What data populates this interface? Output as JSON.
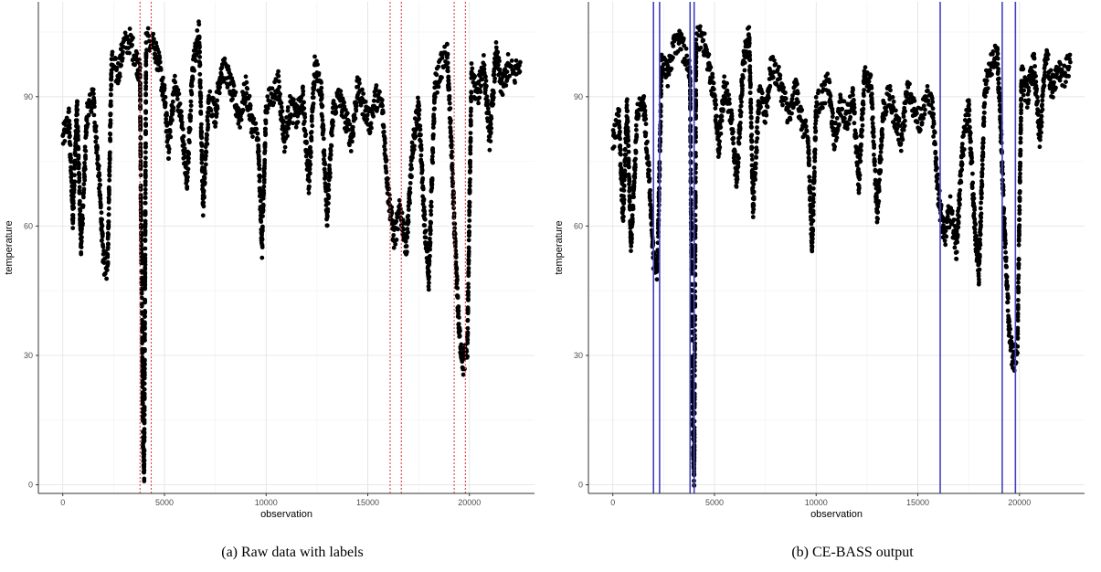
{
  "figure": {
    "captions": [
      "(a) Raw data with labels",
      "(b) CE-BASS output"
    ]
  },
  "chart_data": [
    {
      "type": "scatter",
      "caption": "(a) Raw data with labels",
      "xlabel": "observation",
      "ylabel": "temperature",
      "xlim": [
        -1200,
        23200
      ],
      "ylim": [
        -2,
        112
      ],
      "x_ticks": [
        0,
        5000,
        10000,
        15000,
        20000
      ],
      "y_ticks": [
        0,
        30,
        60,
        90
      ],
      "grid": true,
      "series": [
        {
          "marker_color": "#000000",
          "points": [
            [
              0,
              80
            ],
            [
              300,
              85
            ],
            [
              500,
              62
            ],
            [
              700,
              88
            ],
            [
              900,
              55
            ],
            [
              1200,
              86
            ],
            [
              1500,
              90
            ],
            [
              1800,
              70
            ],
            [
              2000,
              52
            ],
            [
              2200,
              50
            ],
            [
              2400,
              98
            ],
            [
              2700,
              95
            ],
            [
              3000,
              102
            ],
            [
              3300,
              103
            ],
            [
              3600,
              99
            ],
            [
              3800,
              95
            ],
            [
              3850,
              60
            ],
            [
              3900,
              35
            ],
            [
              3950,
              10
            ],
            [
              4000,
              2
            ],
            [
              4100,
              103
            ],
            [
              4400,
              104
            ],
            [
              4700,
              98
            ],
            [
              5000,
              90
            ],
            [
              5200,
              78
            ],
            [
              5500,
              93
            ],
            [
              5800,
              86
            ],
            [
              6100,
              70
            ],
            [
              6400,
              97
            ],
            [
              6700,
              105
            ],
            [
              6900,
              65
            ],
            [
              7200,
              90
            ],
            [
              7500,
              86
            ],
            [
              7800,
              97
            ],
            [
              8100,
              95
            ],
            [
              8400,
              90
            ],
            [
              8700,
              85
            ],
            [
              9000,
              92
            ],
            [
              9300,
              84
            ],
            [
              9600,
              80
            ],
            [
              9800,
              55
            ],
            [
              10000,
              88
            ],
            [
              10300,
              90
            ],
            [
              10600,
              93
            ],
            [
              10900,
              80
            ],
            [
              11200,
              88
            ],
            [
              11500,
              85
            ],
            [
              11800,
              90
            ],
            [
              12100,
              70
            ],
            [
              12400,
              97
            ],
            [
              12700,
              92
            ],
            [
              13000,
              62
            ],
            [
              13300,
              87
            ],
            [
              13600,
              90
            ],
            [
              13900,
              85
            ],
            [
              14200,
              80
            ],
            [
              14500,
              92
            ],
            [
              14800,
              88
            ],
            [
              15100,
              84
            ],
            [
              15400,
              90
            ],
            [
              15700,
              88
            ],
            [
              16000,
              68
            ],
            [
              16300,
              57
            ],
            [
              16600,
              64
            ],
            [
              16900,
              55
            ],
            [
              17200,
              78
            ],
            [
              17500,
              88
            ],
            [
              17800,
              60
            ],
            [
              18000,
              48
            ],
            [
              18300,
              92
            ],
            [
              18600,
              97
            ],
            [
              18900,
              100
            ],
            [
              19100,
              80
            ],
            [
              19300,
              55
            ],
            [
              19500,
              35
            ],
            [
              19700,
              28
            ],
            [
              19900,
              32
            ],
            [
              20100,
              95
            ],
            [
              20400,
              90
            ],
            [
              20700,
              98
            ],
            [
              21000,
              80
            ],
            [
              21300,
              100
            ],
            [
              21600,
              92
            ],
            [
              21900,
              97
            ],
            [
              22200,
              95
            ],
            [
              22500,
              98
            ]
          ]
        }
      ],
      "annotations": {
        "type": "vertical-lines",
        "style": "dotted",
        "color": "#e04040",
        "x": [
          3800,
          4350,
          16100,
          16650,
          19250,
          19800
        ]
      }
    },
    {
      "type": "scatter",
      "caption": "(b) CE-BASS output",
      "xlabel": "observation",
      "ylabel": "temperature",
      "xlim": [
        -1200,
        23200
      ],
      "ylim": [
        -2,
        112
      ],
      "x_ticks": [
        0,
        5000,
        10000,
        15000,
        20000
      ],
      "y_ticks": [
        0,
        30,
        60,
        90
      ],
      "grid": true,
      "series": [
        {
          "marker_color": "#000000",
          "points": [
            [
              0,
              80
            ],
            [
              300,
              85
            ],
            [
              500,
              62
            ],
            [
              700,
              88
            ],
            [
              900,
              55
            ],
            [
              1200,
              86
            ],
            [
              1500,
              90
            ],
            [
              1800,
              70
            ],
            [
              2000,
              52
            ],
            [
              2200,
              50
            ],
            [
              2400,
              98
            ],
            [
              2700,
              95
            ],
            [
              3000,
              102
            ],
            [
              3300,
              103
            ],
            [
              3600,
              99
            ],
            [
              3800,
              95
            ],
            [
              3850,
              60
            ],
            [
              3900,
              35
            ],
            [
              3950,
              10
            ],
            [
              4000,
              2
            ],
            [
              4100,
              103
            ],
            [
              4400,
              104
            ],
            [
              4700,
              98
            ],
            [
              5000,
              90
            ],
            [
              5200,
              78
            ],
            [
              5500,
              93
            ],
            [
              5800,
              86
            ],
            [
              6100,
              70
            ],
            [
              6400,
              97
            ],
            [
              6700,
              105
            ],
            [
              6900,
              65
            ],
            [
              7200,
              90
            ],
            [
              7500,
              86
            ],
            [
              7800,
              97
            ],
            [
              8100,
              95
            ],
            [
              8400,
              90
            ],
            [
              8700,
              85
            ],
            [
              9000,
              92
            ],
            [
              9300,
              84
            ],
            [
              9600,
              80
            ],
            [
              9800,
              55
            ],
            [
              10000,
              88
            ],
            [
              10300,
              90
            ],
            [
              10600,
              93
            ],
            [
              10900,
              80
            ],
            [
              11200,
              88
            ],
            [
              11500,
              85
            ],
            [
              11800,
              90
            ],
            [
              12100,
              70
            ],
            [
              12400,
              97
            ],
            [
              12700,
              92
            ],
            [
              13000,
              62
            ],
            [
              13300,
              87
            ],
            [
              13600,
              90
            ],
            [
              13900,
              85
            ],
            [
              14200,
              80
            ],
            [
              14500,
              92
            ],
            [
              14800,
              88
            ],
            [
              15100,
              84
            ],
            [
              15400,
              90
            ],
            [
              15700,
              88
            ],
            [
              16000,
              68
            ],
            [
              16300,
              57
            ],
            [
              16600,
              64
            ],
            [
              16900,
              55
            ],
            [
              17200,
              78
            ],
            [
              17500,
              88
            ],
            [
              17800,
              60
            ],
            [
              18000,
              48
            ],
            [
              18300,
              92
            ],
            [
              18600,
              97
            ],
            [
              18900,
              100
            ],
            [
              19100,
              80
            ],
            [
              19300,
              55
            ],
            [
              19500,
              35
            ],
            [
              19700,
              28
            ],
            [
              19900,
              32
            ],
            [
              20100,
              95
            ],
            [
              20400,
              90
            ],
            [
              20700,
              98
            ],
            [
              21000,
              80
            ],
            [
              21300,
              100
            ],
            [
              21600,
              92
            ],
            [
              21900,
              97
            ],
            [
              22200,
              95
            ],
            [
              22500,
              98
            ]
          ]
        }
      ],
      "annotations": {
        "type": "vertical-lines",
        "style": "solid",
        "color": "#4040c0",
        "x": [
          2000,
          2300,
          3800,
          4000,
          16100,
          19150,
          19800
        ]
      }
    }
  ]
}
